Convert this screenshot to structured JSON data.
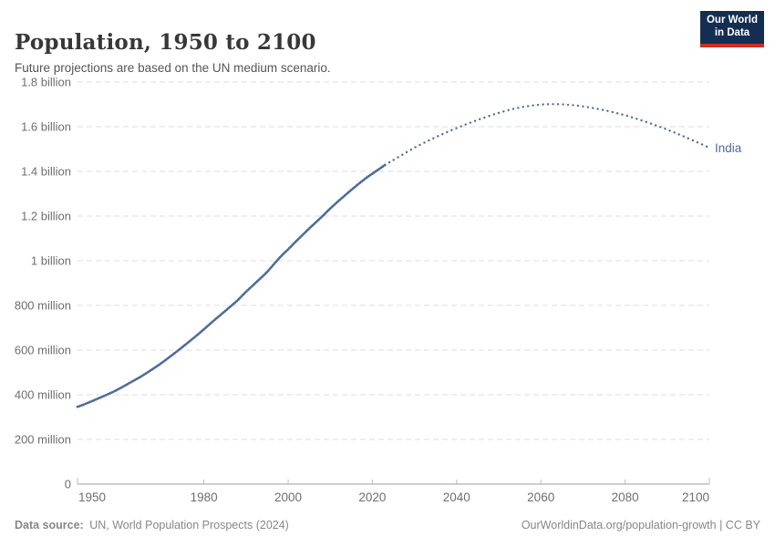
{
  "header": {
    "title": "Population, 1950 to 2100",
    "subtitle": "Future projections are based on the UN medium scenario.",
    "logo": {
      "line1": "Our World",
      "line2": "in Data",
      "bg_color": "#142e52",
      "accent_color": "#cf2d20"
    }
  },
  "chart_data": {
    "type": "line",
    "title": "Population, 1950 to 2100",
    "entity": "India",
    "color": "#4c6a9c",
    "unit": "people",
    "value_scale": "billions",
    "xlim": [
      1950,
      2100
    ],
    "ylim": [
      0,
      1.8
    ],
    "grid": "dashed-horizontal",
    "legend_position": "end-of-line-label",
    "x_ticks": [
      1950,
      1980,
      2000,
      2020,
      2040,
      2060,
      2080,
      2100
    ],
    "y_ticks": [
      {
        "value": 0,
        "label": "0"
      },
      {
        "value": 0.2,
        "label": "200 million"
      },
      {
        "value": 0.4,
        "label": "400 million"
      },
      {
        "value": 0.6,
        "label": "600 million"
      },
      {
        "value": 0.8,
        "label": "800 million"
      },
      {
        "value": 1.0,
        "label": "1 billion"
      },
      {
        "value": 1.2,
        "label": "1.2 billion"
      },
      {
        "value": 1.4,
        "label": "1.4 billion"
      },
      {
        "value": 1.6,
        "label": "1.6 billion"
      },
      {
        "value": 1.8,
        "label": "1.8 billion"
      }
    ],
    "series": [
      {
        "name": "India (estimates)",
        "kind": "estimate",
        "points": [
          [
            1950,
            0.346
          ],
          [
            1952,
            0.36
          ],
          [
            1955,
            0.384
          ],
          [
            1958,
            0.409
          ],
          [
            1960,
            0.428
          ],
          [
            1962,
            0.449
          ],
          [
            1965,
            0.481
          ],
          [
            1968,
            0.517
          ],
          [
            1970,
            0.543
          ],
          [
            1972,
            0.571
          ],
          [
            1975,
            0.615
          ],
          [
            1978,
            0.661
          ],
          [
            1980,
            0.693
          ],
          [
            1982,
            0.726
          ],
          [
            1985,
            0.774
          ],
          [
            1988,
            0.823
          ],
          [
            1990,
            0.861
          ],
          [
            1992,
            0.896
          ],
          [
            1995,
            0.95
          ],
          [
            1998,
            1.014
          ],
          [
            2000,
            1.051
          ],
          [
            2002,
            1.089
          ],
          [
            2005,
            1.144
          ],
          [
            2008,
            1.197
          ],
          [
            2010,
            1.234
          ],
          [
            2012,
            1.268
          ],
          [
            2015,
            1.317
          ],
          [
            2018,
            1.363
          ],
          [
            2020,
            1.39
          ],
          [
            2023,
            1.429
          ]
        ]
      },
      {
        "name": "India (UN medium scenario projection)",
        "kind": "projection",
        "points": [
          [
            2023,
            1.429
          ],
          [
            2026,
            1.462
          ],
          [
            2030,
            1.506
          ],
          [
            2034,
            1.544
          ],
          [
            2038,
            1.578
          ],
          [
            2042,
            1.609
          ],
          [
            2046,
            1.637
          ],
          [
            2050,
            1.662
          ],
          [
            2054,
            1.682
          ],
          [
            2058,
            1.695
          ],
          [
            2062,
            1.701
          ],
          [
            2066,
            1.699
          ],
          [
            2070,
            1.691
          ],
          [
            2074,
            1.678
          ],
          [
            2078,
            1.661
          ],
          [
            2082,
            1.64
          ],
          [
            2086,
            1.615
          ],
          [
            2090,
            1.587
          ],
          [
            2094,
            1.556
          ],
          [
            2098,
            1.523
          ],
          [
            2100,
            1.505
          ]
        ]
      }
    ]
  },
  "footer": {
    "source_label": "Data source:",
    "source_value": "UN, World Population Prospects (2024)",
    "right_text": "OurWorldinData.org/population-growth | CC BY"
  }
}
